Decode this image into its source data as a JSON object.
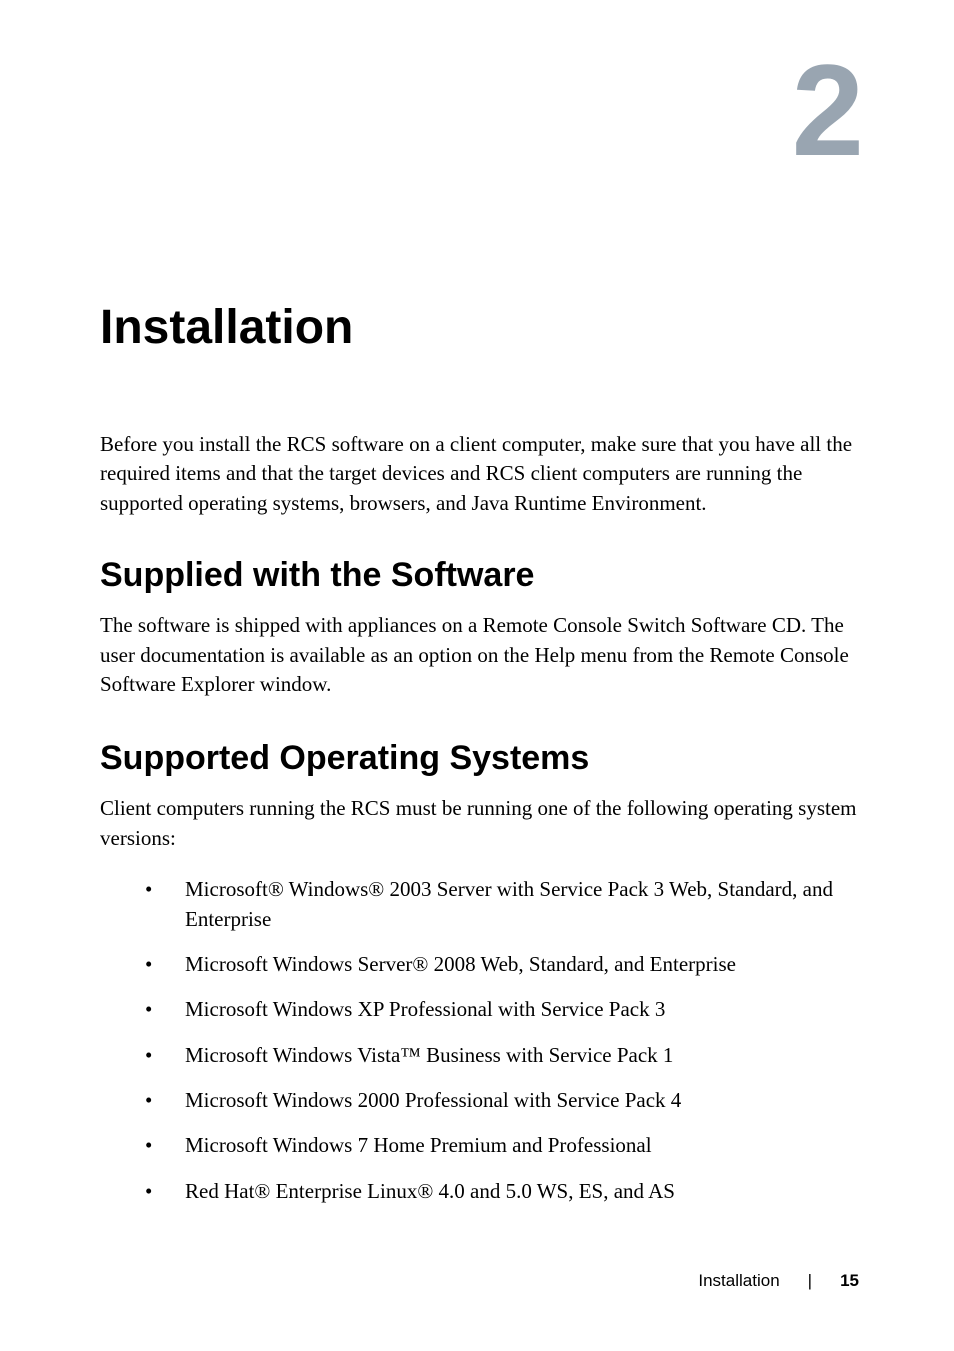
{
  "chapter": {
    "number": "2",
    "title": "Installation",
    "chapter_number_color": "#99a5b1",
    "chapter_number_fontsize": 130,
    "title_fontsize": 48
  },
  "intro": {
    "text": "Before you install the RCS software on a client computer, make sure that you have all the required items and that the target devices and RCS client computers are running the supported operating systems, browsers, and Java Runtime Environment.",
    "fontsize": 21
  },
  "section1": {
    "heading": "Supplied with the Software",
    "heading_fontsize": 34,
    "text": "The software is shipped with appliances on a Remote Console Switch Software CD. The user documentation is available as an option on the Help menu from the Remote Console Software Explorer window."
  },
  "section2": {
    "heading": "Supported Operating Systems",
    "heading_fontsize": 34,
    "intro": "Client computers running the RCS must be running one of the following operating system versions:",
    "items": [
      "Microsoft® Windows® 2003 Server with Service Pack 3 Web, Standard, and Enterprise",
      "Microsoft Windows Server® 2008 Web, Standard, and Enterprise",
      "Microsoft Windows XP Professional with Service Pack 3",
      "Microsoft Windows Vista™ Business with Service Pack 1",
      "Microsoft Windows 2000 Professional with Service Pack 4",
      "Microsoft Windows 7 Home Premium and Professional",
      "Red Hat® Enterprise Linux® 4.0 and 5.0 WS, ES, and AS"
    ]
  },
  "footer": {
    "text": "Installation",
    "divider": "|",
    "page": "15"
  },
  "colors": {
    "background": "#ffffff",
    "text": "#000000",
    "chapter_number": "#99a5b1"
  }
}
